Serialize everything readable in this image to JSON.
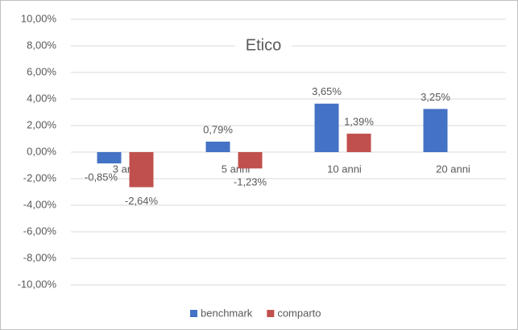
{
  "chart_data": {
    "type": "bar",
    "title": "Etico",
    "categories": [
      "3 anni",
      "5 anni",
      "10 anni",
      "20 anni"
    ],
    "series": [
      {
        "name": "benchmark",
        "color": "#4472c4",
        "values": [
          -0.85,
          0.79,
          3.65,
          3.25
        ],
        "value_labels": [
          "-0,85%",
          "0,79%",
          "3,65%",
          "3,25%"
        ]
      },
      {
        "name": "comparto",
        "color": "#c0504d",
        "values": [
          -2.64,
          -1.23,
          1.39,
          null
        ],
        "value_labels": [
          "-2,64%",
          "-1,23%",
          "1,39%",
          null
        ]
      }
    ],
    "ylim": [
      -10,
      10
    ],
    "yticks": [
      {
        "value": -10,
        "label": "-10,00%"
      },
      {
        "value": -8,
        "label": "-8,00%"
      },
      {
        "value": -6,
        "label": "-6,00%"
      },
      {
        "value": -4,
        "label": "-4,00%"
      },
      {
        "value": -2,
        "label": "-2,00%"
      },
      {
        "value": 0,
        "label": "0,00%"
      },
      {
        "value": 2,
        "label": "2,00%"
      },
      {
        "value": 4,
        "label": "4,00%"
      },
      {
        "value": 6,
        "label": "6,00%"
      },
      {
        "value": 8,
        "label": "8,00%"
      },
      {
        "value": 10,
        "label": "10,00%"
      }
    ],
    "grid": true,
    "legend": "bottom"
  }
}
